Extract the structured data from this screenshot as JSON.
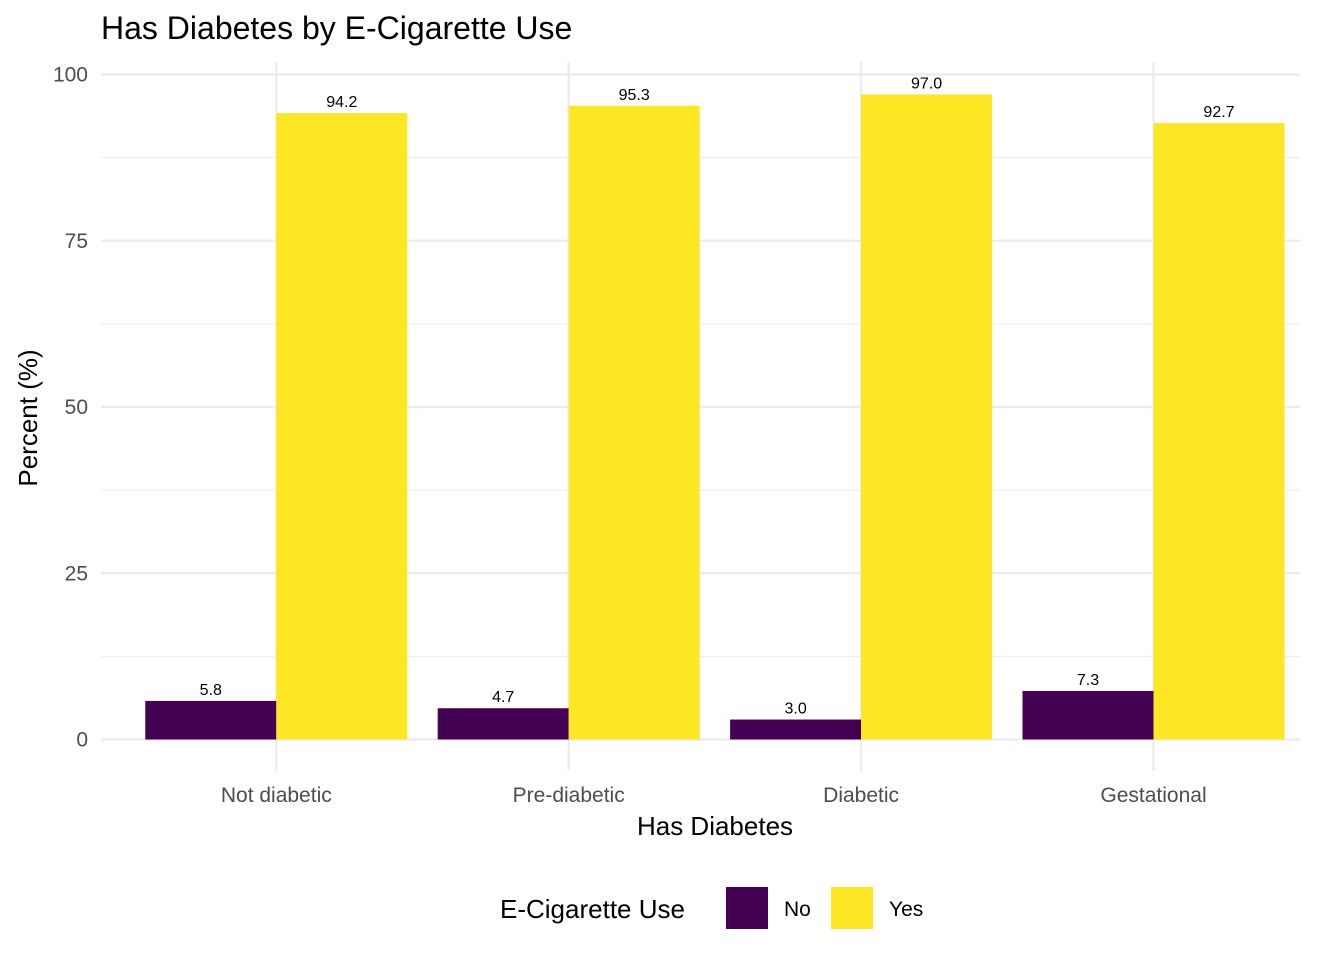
{
  "chart_data": {
    "type": "bar",
    "title": "Has Diabetes by E-Cigarette Use",
    "xlabel": "Has Diabetes",
    "ylabel": "Percent (%)",
    "categories": [
      "Not diabetic",
      "Pre-diabetic",
      "Diabetic",
      "Gestational"
    ],
    "series": [
      {
        "name": "No",
        "values": [
          5.8,
          4.7,
          3.0,
          7.3
        ],
        "labels": [
          "5.8",
          "4.7",
          "3.0",
          "7.3"
        ],
        "color": "#440154"
      },
      {
        "name": "Yes",
        "values": [
          94.2,
          95.3,
          97.0,
          92.7
        ],
        "labels": [
          "94.2",
          "95.3",
          "97.0",
          "92.7"
        ],
        "color": "#FDE725"
      }
    ],
    "ylim": [
      0,
      100
    ],
    "yticks": [
      "0",
      "25",
      "50",
      "75",
      "100"
    ],
    "grid": true,
    "legend": {
      "title": "E-Cigarette Use",
      "position": "bottom"
    }
  }
}
